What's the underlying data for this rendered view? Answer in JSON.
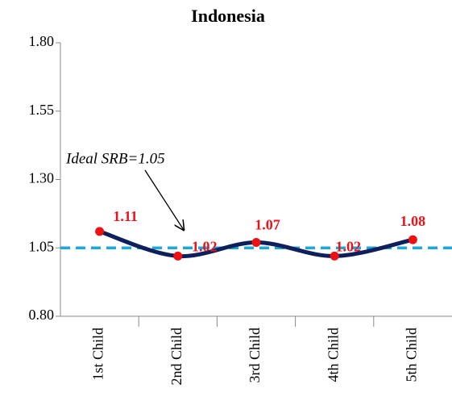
{
  "chart_data": {
    "type": "line",
    "title": "Indonesia",
    "categories": [
      "1st Child",
      "2nd Child",
      "3rd Child",
      "4th Child",
      "5th Child"
    ],
    "values": [
      1.11,
      1.02,
      1.07,
      1.02,
      1.08
    ],
    "value_labels": [
      "1.11",
      "1.02",
      "1.07",
      "1.02",
      "1.08"
    ],
    "color": "#0d1f5c",
    "marker_color": "#ee1111",
    "label_color": "#e8141b",
    "ylim": [
      0.8,
      1.8
    ],
    "yticks": [
      {
        "value": 0.8,
        "label": "0.80"
      },
      {
        "value": 1.05,
        "label": "1.05"
      },
      {
        "value": 1.3,
        "label": "1.30"
      },
      {
        "value": 1.55,
        "label": "1.55"
      },
      {
        "value": 1.8,
        "label": "1.80"
      }
    ],
    "reference_value": 1.05,
    "reference_color": "#1aa8e0",
    "annotation": "Ideal SRB=1.05",
    "smooth": true
  }
}
